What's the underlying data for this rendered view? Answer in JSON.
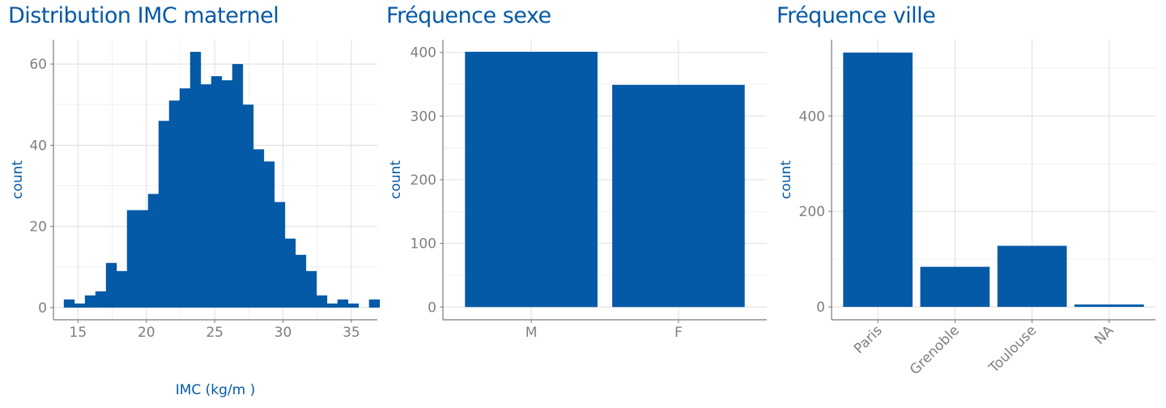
{
  "chart_data": [
    {
      "type": "bar",
      "title": "Distribution IMC maternel",
      "xlabel": "IMC (kg/m )",
      "ylabel": "count",
      "bin_start": 13.96,
      "bin_width": 0.77,
      "values": [
        2,
        1,
        3,
        4,
        11,
        9,
        24,
        24,
        28,
        46,
        51,
        54,
        63,
        55,
        57,
        56,
        60,
        50,
        39,
        36,
        26,
        17,
        13,
        9,
        3,
        1,
        2,
        1,
        0,
        2
      ],
      "xlim": [
        13.2,
        36.9
      ],
      "ylim": [
        -3,
        66
      ],
      "xticks": [
        15,
        20,
        25,
        30,
        35
      ],
      "yticks": [
        0,
        20,
        40,
        60
      ],
      "grid": true,
      "color": "#045aa6"
    },
    {
      "type": "bar",
      "title": "Fréquence sexe",
      "xlabel": "",
      "ylabel": "count",
      "categories": [
        "M",
        "F"
      ],
      "values": [
        401,
        349
      ],
      "ylim": [
        -20,
        420
      ],
      "yticks": [
        0,
        100,
        200,
        300,
        400
      ],
      "grid": true,
      "color": "#045aa6"
    },
    {
      "type": "bar",
      "title": "Fréquence ville",
      "xlabel": "",
      "ylabel": "count",
      "categories": [
        "Paris",
        "Grenoble",
        "Toulouse",
        "NA"
      ],
      "values": [
        533,
        84,
        128,
        5
      ],
      "ylim": [
        -27,
        560
      ],
      "yticks": [
        0,
        200,
        400
      ],
      "grid": true,
      "color": "#045aa6"
    }
  ]
}
